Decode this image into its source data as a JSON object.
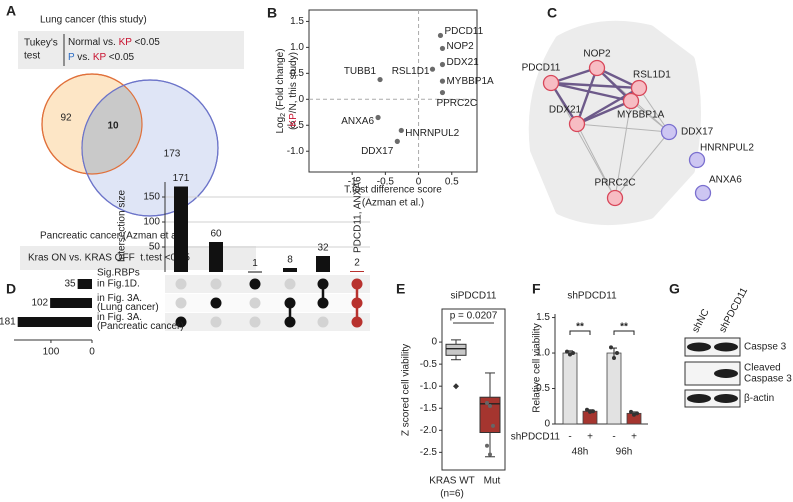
{
  "panels": [
    "A",
    "B",
    "C",
    "D",
    "E",
    "F",
    "G"
  ],
  "venn": {
    "title": "Lung cancer (this study)",
    "test_label": [
      "Tukey's",
      "test"
    ],
    "legend": [
      [
        {
          "text": "Normal vs. "
        },
        {
          "text": "KP",
          "color": "#c8102e"
        },
        {
          "text": " <0.05"
        }
      ],
      [
        {
          "text": "P",
          "color": "#2b6cc4"
        },
        {
          "text": " vs. "
        },
        {
          "text": "KP",
          "color": "#c8102e"
        },
        {
          "text": " <0.05"
        }
      ]
    ],
    "counts": [
      92,
      10,
      173
    ],
    "colors": [
      "#fde6c6",
      "#c9c9c9",
      "#dfe5f6"
    ],
    "strokes": [
      "#e0703a",
      "#6c74c9"
    ],
    "bottom_title": "Pancreatic cancer (Azman et al.)",
    "bottom_note": "Kras ON vs. KRAS OFF  t.test <0.05"
  },
  "chart_data": [
    {
      "type": "scatter",
      "x_label": [
        "T.test difference score",
        "(Azman et al.)"
      ],
      "y_label": [
        [
          {
            "text": "Log"
          },
          {
            "text": "2",
            "sub": true
          },
          {
            "text": " (Fold change)"
          }
        ],
        [
          {
            "text": "("
          },
          {
            "text": "KP",
            "color": "#c8102e"
          },
          {
            "text": "/N, this study)"
          }
        ]
      ],
      "labels": [
        "PDCD11",
        "NOP2",
        "DDX21",
        "RSL1D1",
        "MYBBP1A",
        "PPRC2C",
        "TUBB1",
        "ANXA6",
        "HNRNPUL2",
        "DDX17"
      ],
      "x": [
        0.33,
        0.36,
        0.36,
        0.21,
        0.36,
        0.36,
        -0.58,
        -0.61,
        -0.26,
        -0.32
      ],
      "values": [
        1.23,
        0.98,
        0.67,
        0.58,
        0.35,
        0.13,
        0.38,
        -0.35,
        -0.6,
        -0.81
      ],
      "colors": [
        "#c8102e",
        "#c8102e",
        "#c8102e",
        "#c8102e",
        "#c8102e",
        "#c8102e",
        "#8c8c8c",
        "#2b3a9b",
        "#2b3a9b",
        "#2b3a9b"
      ],
      "point_color": "#6b6b6b",
      "xlim": [
        -1.65,
        0.88
      ],
      "ylim": [
        -1.4,
        1.72
      ],
      "xticks": [
        -1,
        -0.5,
        0,
        0.5
      ],
      "yticks": [
        {
          "value": -1,
          "label": "-1.0"
        },
        -0.5,
        0,
        0.5,
        {
          "value": 1,
          "label": "1.0"
        },
        1.5
      ]
    },
    {
      "type": "bar",
      "y_label": "Intersection size",
      "values": [
        171,
        60,
        1,
        8,
        32,
        2
      ],
      "colors": [
        "#111111",
        "#111111",
        "#111111",
        "#111111",
        "#111111",
        "#b8322e"
      ],
      "annotation": "PDCD11, ANXA6",
      "membership": [
        [
          false,
          false,
          true
        ],
        [
          false,
          true,
          false
        ],
        [
          true,
          false,
          false
        ],
        [
          false,
          true,
          true
        ],
        [
          true,
          true,
          false
        ],
        [
          true,
          true,
          true
        ]
      ],
      "ylim": [
        0,
        180
      ],
      "yticks": [
        50,
        100,
        150
      ],
      "grid": true
    },
    {
      "type": "bar",
      "orientation": "horizontal",
      "reversed": true,
      "title": "Sig.RBPs",
      "categories": [
        [
          "in Fig.1D."
        ],
        [
          "in Fig. 3A.",
          "(Lung cancer)"
        ],
        [
          "in Fig. 3A.",
          "(Pancreatic cancer)"
        ]
      ],
      "values": [
        35,
        102,
        181
      ],
      "color": "#111111",
      "xlim": [
        0,
        190
      ],
      "xticks": [
        0,
        100
      ]
    },
    {
      "type": "box",
      "title": "siPDCD11",
      "annotation": "p = 0.0207",
      "y_label": "Z scored cell viability",
      "categories": [
        [
          "KRAS WT",
          "(n=6)"
        ],
        [
          "Mut"
        ]
      ],
      "boxes": [
        {
          "min": -0.4,
          "q1": -0.3,
          "median": -0.15,
          "q3": -0.05,
          "max": 0.05,
          "outliers": [
            -1.0
          ],
          "points": [],
          "color": "#c8c8c8"
        },
        {
          "min": -2.6,
          "q1": -2.05,
          "median": -1.4,
          "q3": -1.25,
          "max": -0.7,
          "outliers": [],
          "points": [
            -1.38,
            -1.45,
            -1.9,
            -2.35,
            -2.55
          ],
          "color": "#a5352f"
        }
      ],
      "ylim": [
        -2.9,
        0.75
      ],
      "yticks": [
        0,
        -0.5,
        {
          "value": -1,
          "label": "-1.0"
        },
        -1.5,
        {
          "value": -2,
          "label": "-2.0"
        },
        -2.5
      ]
    },
    {
      "type": "bar",
      "title": "shPDCD11",
      "y_label": "Relative cell viability",
      "categories": [
        "-",
        "+",
        "-",
        "+"
      ],
      "row_label": "shPDCD11",
      "groups": [
        "48h",
        "96h"
      ],
      "significance": [
        "**",
        "**"
      ],
      "values": [
        1.0,
        0.18,
        1.0,
        0.15
      ],
      "errors": [
        0.03,
        0.02,
        0.07,
        0.02
      ],
      "points": [
        [
          1.02,
          0.98,
          1.0
        ],
        [
          0.2,
          0.17,
          0.18
        ],
        [
          1.08,
          0.93,
          1.0
        ],
        [
          0.17,
          0.13,
          0.15
        ]
      ],
      "colors": [
        "#e2e2e2",
        "#a5352f",
        "#e2e2e2",
        "#a5352f"
      ],
      "ylim": [
        0,
        1.55
      ],
      "yticks": [
        0,
        0.5,
        {
          "value": 1,
          "label": "1.0"
        },
        1.5
      ]
    }
  ],
  "network": {
    "background": "#ececec",
    "nodes": [
      {
        "label": "NOP2",
        "fill": "#f7bcc3",
        "stroke": "#d8475a"
      },
      {
        "label": "PDCD11",
        "fill": "#f7bcc3",
        "stroke": "#d8475a"
      },
      {
        "label": "RSL1D1",
        "fill": "#f7bcc3",
        "stroke": "#d8475a"
      },
      {
        "label": "MYBBP1A",
        "fill": "#f7bcc3",
        "stroke": "#d8475a"
      },
      {
        "label": "DDX21",
        "fill": "#f7bcc3",
        "stroke": "#d8475a"
      },
      {
        "label": "DDX17",
        "fill": "#cdc6f2",
        "stroke": "#7a6fcf"
      },
      {
        "label": "PRRC2C",
        "fill": "#f7bcc3",
        "stroke": "#d8475a"
      },
      {
        "label": "HNRNPUL2",
        "fill": "#cdc6f2",
        "stroke": "#7a6fcf"
      },
      {
        "label": "ANXA6",
        "fill": "#cdc6f2",
        "stroke": "#7a6fcf"
      }
    ]
  },
  "blot": {
    "lanes": [
      "shNC",
      "shPDCD11"
    ],
    "rows": [
      [
        "Caspse 3"
      ],
      [
        "Cleaved",
        "Caspase 3"
      ],
      [
        "β-actin"
      ]
    ]
  }
}
